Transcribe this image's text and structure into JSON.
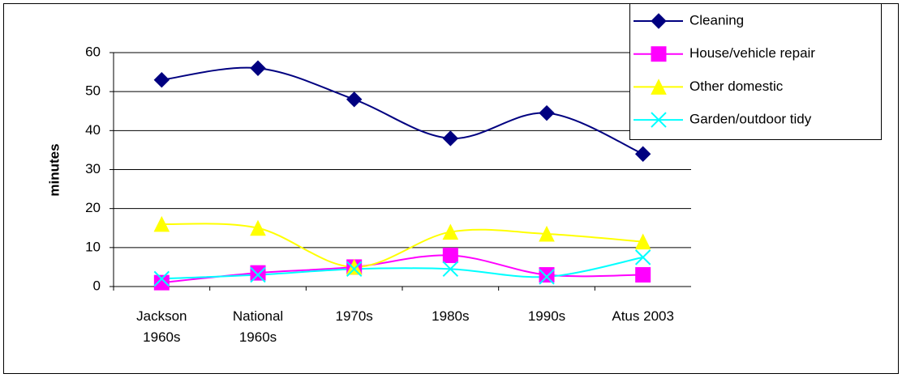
{
  "chart_data": {
    "type": "line",
    "y_label": "minutes",
    "categories": [
      "Jackson 1960s",
      "National 1960s",
      "1970s",
      "1980s",
      "1990s",
      "Atus 2003"
    ],
    "series": [
      {
        "name": "Cleaning",
        "color": "#000080",
        "marker": "diamond",
        "values": [
          53,
          56,
          48,
          38,
          44.5,
          34
        ]
      },
      {
        "name": "House/vehicle repair",
        "color": "#ff00ff",
        "marker": "square",
        "values": [
          1,
          3.5,
          5,
          8,
          3,
          3
        ]
      },
      {
        "name": "Other domestic",
        "color": "#ffff00",
        "marker": "triangle",
        "values": [
          16,
          15,
          5,
          14,
          13.5,
          11.5
        ]
      },
      {
        "name": "Garden/outdoor tidy",
        "color": "#00ffff",
        "marker": "x",
        "values": [
          2,
          3,
          4.5,
          4.5,
          2.5,
          7.5
        ]
      }
    ],
    "ylim": [
      0,
      60
    ],
    "yticks": [
      0,
      10,
      20,
      30,
      40,
      50,
      60
    ],
    "grid": true,
    "smooth": true,
    "legend": "top-right"
  }
}
